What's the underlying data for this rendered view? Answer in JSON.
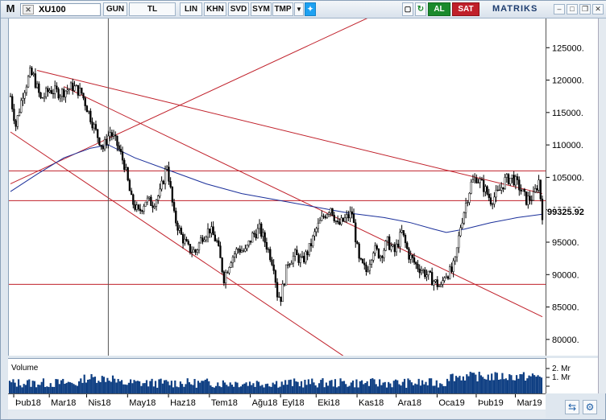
{
  "toolbar": {
    "menu_glyph": "M",
    "symbol": "XU100",
    "period": "GUN",
    "currency": "TL",
    "scale": "LIN",
    "buttons": [
      "KHN",
      "SVD",
      "SYM",
      "TMP"
    ],
    "buy_label": "AL",
    "sell_label": "SAT",
    "brand": "MATRIKS",
    "icons": [
      "twitter-icon",
      "refresh-icon",
      "settings-icon",
      "minimize-icon",
      "maximize-icon",
      "close-icon"
    ]
  },
  "volume": {
    "title": "Volume",
    "ticks": [
      "2. Mr",
      "1. Mr"
    ]
  },
  "last_price_label": "99325.92",
  "chart_data": {
    "type": "candlestick",
    "title": "",
    "y_ticks": [
      125000,
      120000,
      115000,
      110000,
      105000,
      100000,
      95000,
      90000,
      85000,
      80000
    ],
    "y_tick_labels": [
      "125000.",
      "120000.",
      "115000.",
      "110000.",
      "105000.",
      "100000.",
      "95000.",
      "90000.",
      "85000.",
      "80000."
    ],
    "ylim": [
      77500,
      129500
    ],
    "x_tick_labels": [
      "Þub18",
      "Mar18",
      "Nis18",
      "May18",
      "Haz18",
      "Tem18",
      "Ağu18",
      "Eyl18",
      "Eki18",
      "Kas18",
      "Ara18",
      "Oca19",
      "Þub19",
      "Mar19"
    ],
    "x_tick_positions_index": [
      5,
      25,
      46,
      69,
      92,
      115,
      138,
      155,
      175,
      198,
      220,
      243,
      265,
      287
    ],
    "total_bars": 300,
    "price_path": [
      [
        0,
        117500
      ],
      [
        3,
        113000
      ],
      [
        7,
        118000
      ],
      [
        11,
        121000
      ],
      [
        13,
        120500
      ],
      [
        17,
        117000
      ],
      [
        22,
        118500
      ],
      [
        28,
        118000
      ],
      [
        35,
        119000
      ],
      [
        40,
        118000
      ],
      [
        44,
        115000
      ],
      [
        48,
        112000
      ],
      [
        52,
        109500
      ],
      [
        56,
        112000
      ],
      [
        60,
        110000
      ],
      [
        64,
        107000
      ],
      [
        68,
        101500
      ],
      [
        72,
        99500
      ],
      [
        76,
        101500
      ],
      [
        80,
        101000
      ],
      [
        84,
        102500
      ],
      [
        88,
        107000
      ],
      [
        92,
        99000
      ],
      [
        96,
        96000
      ],
      [
        100,
        94000
      ],
      [
        104,
        93500
      ],
      [
        108,
        96000
      ],
      [
        112,
        97000
      ],
      [
        116,
        95000
      ],
      [
        120,
        89500
      ],
      [
        124,
        92500
      ],
      [
        128,
        94000
      ],
      [
        132,
        93500
      ],
      [
        136,
        96000
      ],
      [
        140,
        97000
      ],
      [
        144,
        94500
      ],
      [
        148,
        91500
      ],
      [
        150,
        87000
      ],
      [
        152,
        86500
      ],
      [
        156,
        92000
      ],
      [
        160,
        93000
      ],
      [
        164,
        92000
      ],
      [
        168,
        94000
      ],
      [
        172,
        97000
      ],
      [
        176,
        99000
      ],
      [
        180,
        100500
      ],
      [
        184,
        97500
      ],
      [
        188,
        98500
      ],
      [
        192,
        99500
      ],
      [
        196,
        92000
      ],
      [
        200,
        90500
      ],
      [
        204,
        94000
      ],
      [
        208,
        93000
      ],
      [
        212,
        95000
      ],
      [
        216,
        93500
      ],
      [
        220,
        96500
      ],
      [
        224,
        93000
      ],
      [
        228,
        91500
      ],
      [
        232,
        90500
      ],
      [
        236,
        89500
      ],
      [
        240,
        88500
      ],
      [
        242,
        88000
      ],
      [
        244,
        90000
      ],
      [
        248,
        90500
      ],
      [
        250,
        92000
      ],
      [
        253,
        97500
      ],
      [
        256,
        101000
      ],
      [
        259,
        104000
      ],
      [
        262,
        105000
      ],
      [
        266,
        103500
      ],
      [
        270,
        101500
      ],
      [
        274,
        102500
      ],
      [
        278,
        104500
      ],
      [
        282,
        105000
      ],
      [
        286,
        103500
      ],
      [
        290,
        101500
      ],
      [
        294,
        102000
      ],
      [
        297,
        104500
      ],
      [
        299,
        99325
      ]
    ],
    "moving_average": [
      [
        0,
        102800
      ],
      [
        15,
        105500
      ],
      [
        30,
        108000
      ],
      [
        45,
        109500
      ],
      [
        55,
        110000
      ],
      [
        70,
        108000
      ],
      [
        90,
        106000
      ],
      [
        110,
        104000
      ],
      [
        130,
        102500
      ],
      [
        150,
        101500
      ],
      [
        170,
        100500
      ],
      [
        190,
        99500
      ],
      [
        210,
        98800
      ],
      [
        225,
        98000
      ],
      [
        238,
        97000
      ],
      [
        245,
        96500
      ],
      [
        255,
        97000
      ],
      [
        270,
        98000
      ],
      [
        285,
        98800
      ],
      [
        299,
        99300
      ]
    ],
    "horizontal_levels": [
      106000,
      101400,
      88500
    ],
    "trend_lines": [
      {
        "from": [
          15,
          121500
        ],
        "to": [
          299,
          102500
        ]
      },
      {
        "from": [
          0,
          104000
        ],
        "to": [
          212,
          131000
        ]
      },
      {
        "from": [
          0,
          112000
        ],
        "to": [
          195,
          76000
        ]
      },
      {
        "from": [
          30,
          119000
        ],
        "to": [
          299,
          83500
        ]
      }
    ],
    "cursor_index": 55,
    "last_price": 99325.92,
    "volume_ticks": [
      "2. Mr",
      "1. Mr"
    ],
    "colors": {
      "candles": "#000000",
      "ma": "#1a2f9a",
      "levels": "#c0202a",
      "volume": "#0f3f83",
      "cursor": "#555555"
    }
  }
}
